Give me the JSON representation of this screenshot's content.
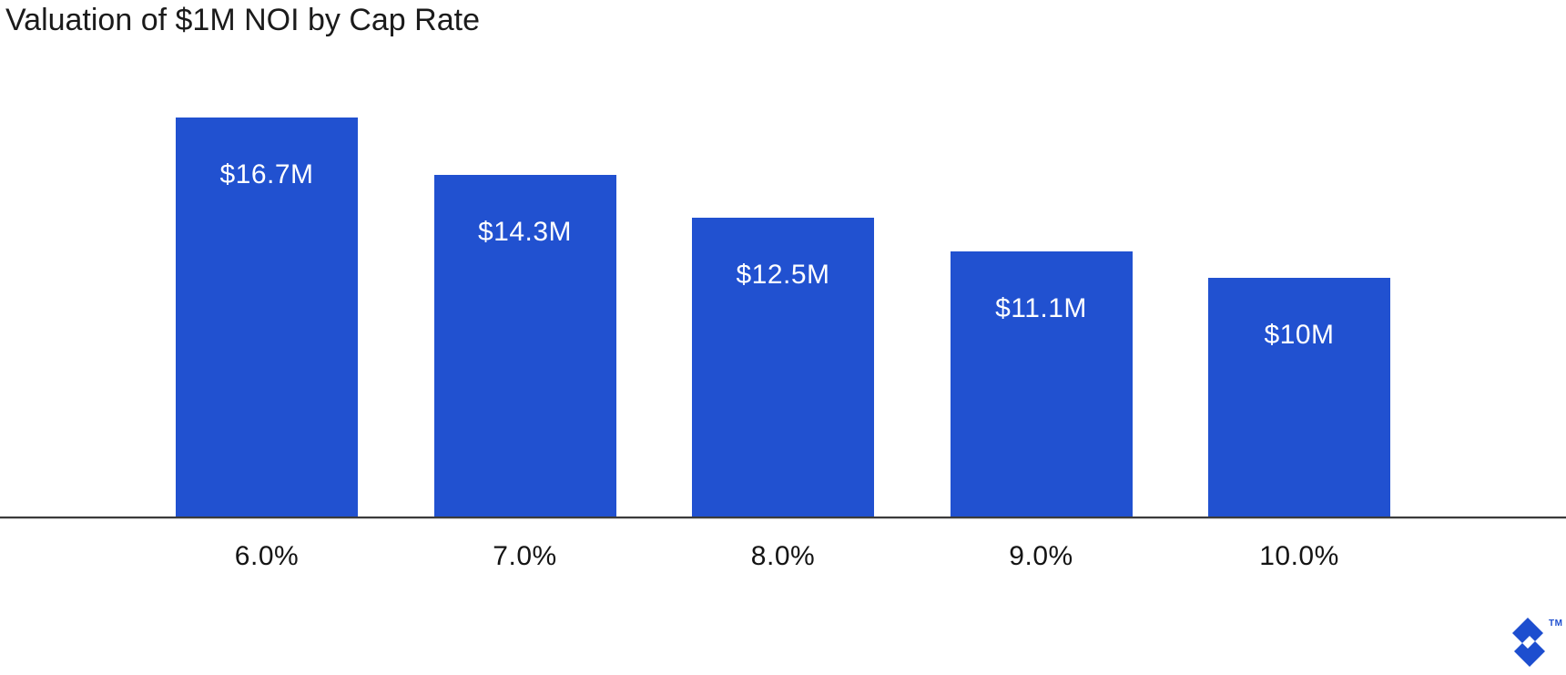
{
  "title": "Valuation of $1M NOI by Cap Rate",
  "chart_data": {
    "type": "bar",
    "title": "Valuation of $1M NOI by Cap Rate",
    "categories": [
      "6.0%",
      "7.0%",
      "8.0%",
      "9.0%",
      "10.0%"
    ],
    "values": [
      16.7,
      14.3,
      12.5,
      11.1,
      10
    ],
    "value_labels": [
      "$16.7M",
      "$14.3M",
      "$12.5M",
      "$11.1M",
      "$10M"
    ],
    "xlabel": "",
    "ylabel": "",
    "ylim": [
      0,
      17.5
    ],
    "grid": "off",
    "legend": "none",
    "bar_color": "#2151d0"
  },
  "colors": {
    "bar": "#2151d0",
    "title_text": "#1b1b1b",
    "axis_label_text": "#141414",
    "value_label_text": "#ffffff",
    "axis_line": "#3b3b3b",
    "logo_blue": "#1d4ecf",
    "background": "#ffffff"
  },
  "branding": {
    "logo_icon": "toptal-diamond-logo",
    "trademark": "TM"
  }
}
